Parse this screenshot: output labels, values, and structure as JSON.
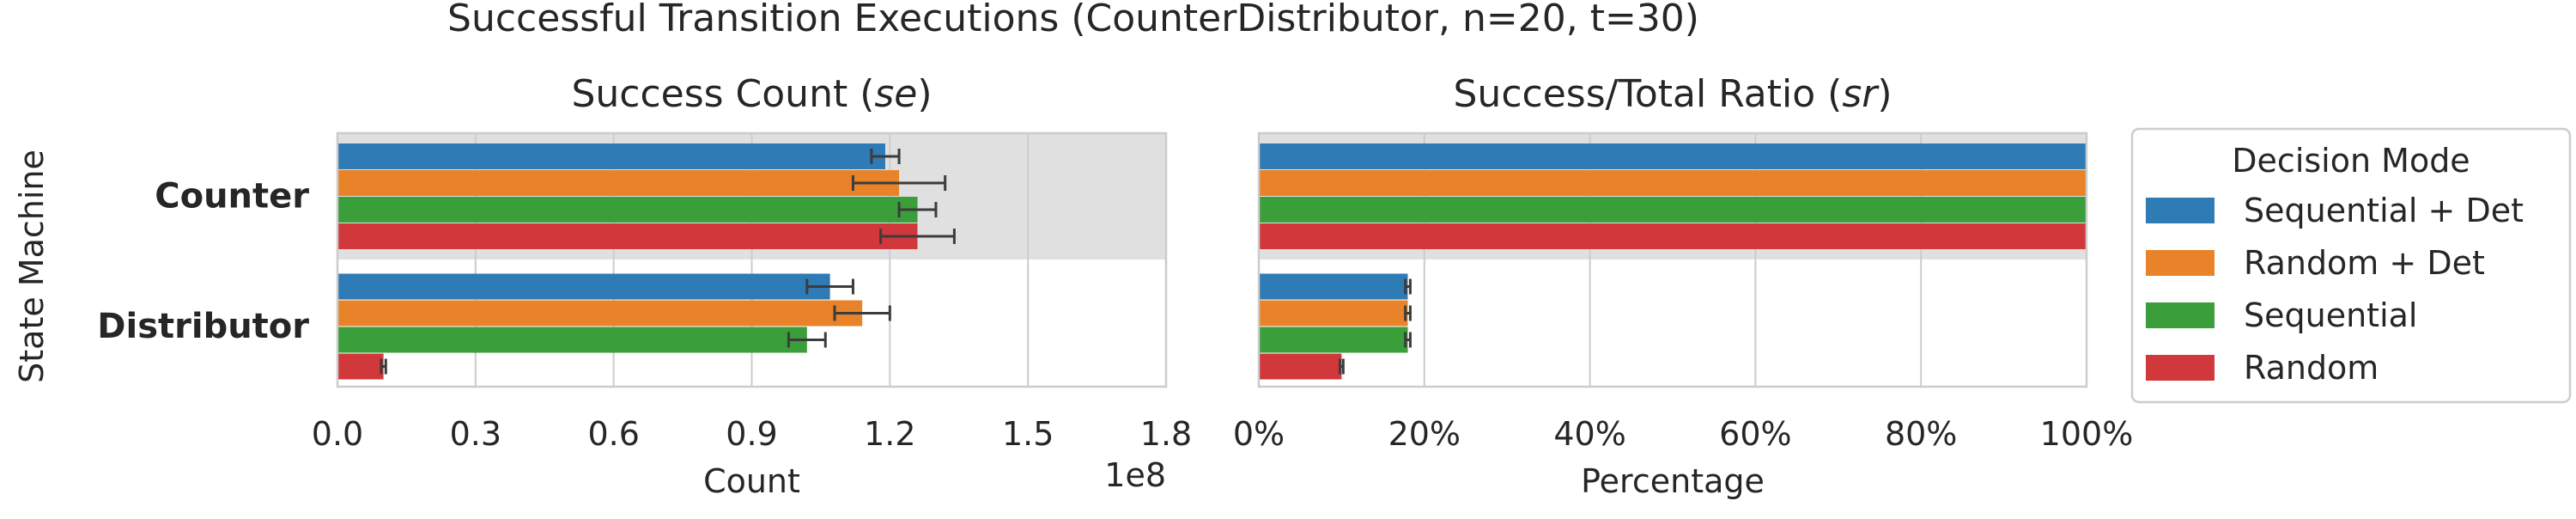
{
  "chart_data": {
    "title": "Successful Transition Executions (CounterDistributor, n=20, t=30)",
    "ylabel": "State Machine",
    "categories": [
      "Counter",
      "Distributor"
    ],
    "legend": {
      "title": "Decision Mode",
      "placement": "right",
      "entries": [
        "Sequential + Det",
        "Random + Det",
        "Sequential",
        "Random"
      ]
    },
    "colors": [
      "#2f7bb6",
      "#e8832a",
      "#3a9e3a",
      "#d0383b"
    ],
    "highlight_band_color": "#e0e0e0",
    "panels": [
      {
        "type": "bar",
        "orientation": "horizontal",
        "title_main": "Success Count (",
        "title_italic": "se",
        "title_end": ")",
        "xlabel": "Count",
        "offset_label": "1e8",
        "xlim": [
          0,
          1.8
        ],
        "xticks": [
          0.0,
          0.3,
          0.6,
          0.9,
          1.2,
          1.5,
          1.8
        ],
        "xtick_labels": [
          "0.0",
          "0.3",
          "0.6",
          "0.9",
          "1.2",
          "1.5",
          "1.8"
        ],
        "highlight_category": "Counter",
        "grid": true,
        "series": [
          {
            "name": "Sequential + Det",
            "values": [
              1.19,
              1.07
            ],
            "err": [
              0.03,
              0.05
            ]
          },
          {
            "name": "Random + Det",
            "values": [
              1.22,
              1.14
            ],
            "err": [
              0.1,
              0.06
            ]
          },
          {
            "name": "Sequential",
            "values": [
              1.26,
              1.02
            ],
            "err": [
              0.04,
              0.04
            ]
          },
          {
            "name": "Random",
            "values": [
              1.26,
              0.1
            ],
            "err": [
              0.08,
              0.005
            ]
          }
        ]
      },
      {
        "type": "bar",
        "orientation": "horizontal",
        "title_main": "Success/Total Ratio (",
        "title_italic": "sr",
        "title_end": ")",
        "xlabel": "Percentage",
        "offset_label": "",
        "xlim": [
          0,
          100
        ],
        "xticks": [
          0,
          20,
          40,
          60,
          80,
          100
        ],
        "xtick_labels": [
          "0%",
          "20%",
          "40%",
          "60%",
          "80%",
          "100%"
        ],
        "highlight_category": "Counter",
        "grid": true,
        "series": [
          {
            "name": "Sequential + Det",
            "values": [
              100,
              18
            ],
            "err": [
              0,
              0.3
            ]
          },
          {
            "name": "Random + Det",
            "values": [
              100,
              18
            ],
            "err": [
              0,
              0.3
            ]
          },
          {
            "name": "Sequential",
            "values": [
              100,
              18
            ],
            "err": [
              0,
              0.3
            ]
          },
          {
            "name": "Random",
            "values": [
              100,
              10
            ],
            "err": [
              0,
              0.2
            ]
          }
        ]
      }
    ]
  }
}
